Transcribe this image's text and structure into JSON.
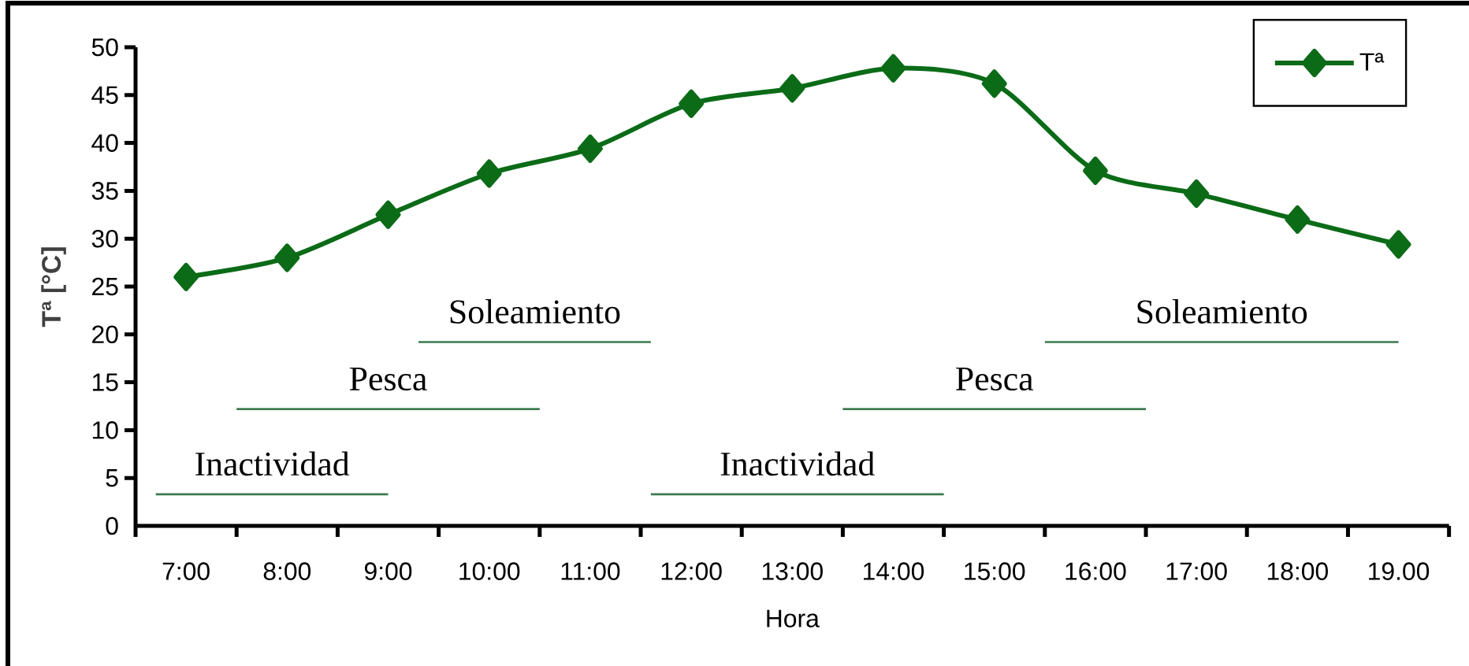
{
  "chart_data": {
    "type": "line",
    "xlabel": "Hora",
    "ylabel": "Tª [°C]",
    "x": [
      7,
      8,
      9,
      10,
      11,
      12,
      13,
      14,
      15,
      16,
      17,
      18,
      19
    ],
    "series": [
      {
        "name": "Tª",
        "color": "#0b6b17",
        "values": [
          26.0,
          28.0,
          32.5,
          36.8,
          39.4,
          44.1,
          45.7,
          47.8,
          46.2,
          37.1,
          34.7,
          32.0,
          29.4
        ]
      },
      {
        "name": "Inactividad",
        "color": "#3d7a4f",
        "marker": "none",
        "x": [
          6.7,
          9.0
        ],
        "values": [
          3.3,
          3.3
        ]
      },
      {
        "name": "Pesca",
        "color": "#3d7a4f",
        "marker": "none",
        "x": [
          7.5,
          10.5
        ],
        "values": [
          12.2,
          12.2
        ]
      },
      {
        "name": "Soleamiento",
        "color": "#3d7a4f",
        "marker": "none",
        "x": [
          9.3,
          11.6
        ],
        "values": [
          19.2,
          19.2
        ]
      },
      {
        "name": "Inactividad",
        "color": "#3d7a4f",
        "marker": "none",
        "x": [
          11.6,
          14.5
        ],
        "values": [
          3.3,
          3.3
        ]
      },
      {
        "name": "Pesca",
        "color": "#3d7a4f",
        "marker": "none",
        "x": [
          13.5,
          16.5
        ],
        "values": [
          12.2,
          12.2
        ]
      },
      {
        "name": "Soleamiento",
        "color": "#3d7a4f",
        "marker": "none",
        "x": [
          15.5,
          19.0
        ],
        "values": [
          19.2,
          19.2
        ]
      }
    ],
    "xlim": [
      6.5,
      19.5
    ],
    "xticks": [
      {
        "value": 6.5,
        "label": null
      },
      {
        "value": 7,
        "label": "7:00"
      },
      {
        "value": 7.5,
        "label": null
      },
      {
        "value": 8,
        "label": "8:00"
      },
      {
        "value": 8.5,
        "label": null
      },
      {
        "value": 9,
        "label": "9:00"
      },
      {
        "value": 9.5,
        "label": null
      },
      {
        "value": 10,
        "label": "10:00"
      },
      {
        "value": 10.5,
        "label": null
      },
      {
        "value": 11,
        "label": "11:00"
      },
      {
        "value": 11.5,
        "label": null
      },
      {
        "value": 12,
        "label": "12:00"
      },
      {
        "value": 12.5,
        "label": null
      },
      {
        "value": 13,
        "label": "13:00"
      },
      {
        "value": 13.5,
        "label": null
      },
      {
        "value": 14,
        "label": "14:00"
      },
      {
        "value": 14.5,
        "label": null
      },
      {
        "value": 15,
        "label": "15:00"
      },
      {
        "value": 15.5,
        "label": null
      },
      {
        "value": 16,
        "label": "16:00"
      },
      {
        "value": 16.5,
        "label": null
      },
      {
        "value": 17,
        "label": "17:00"
      },
      {
        "value": 17.5,
        "label": null
      },
      {
        "value": 18,
        "label": "18:00"
      },
      {
        "value": 18.5,
        "label": null
      },
      {
        "value": 19,
        "label": "19.00"
      },
      {
        "value": 19.5,
        "label": null
      }
    ],
    "ylim": [
      0,
      50
    ],
    "yticks": [
      0,
      5,
      10,
      15,
      20,
      25,
      30,
      35,
      40,
      45,
      50
    ],
    "marker": "diamond",
    "line_style": "solid",
    "legend": "top right"
  }
}
